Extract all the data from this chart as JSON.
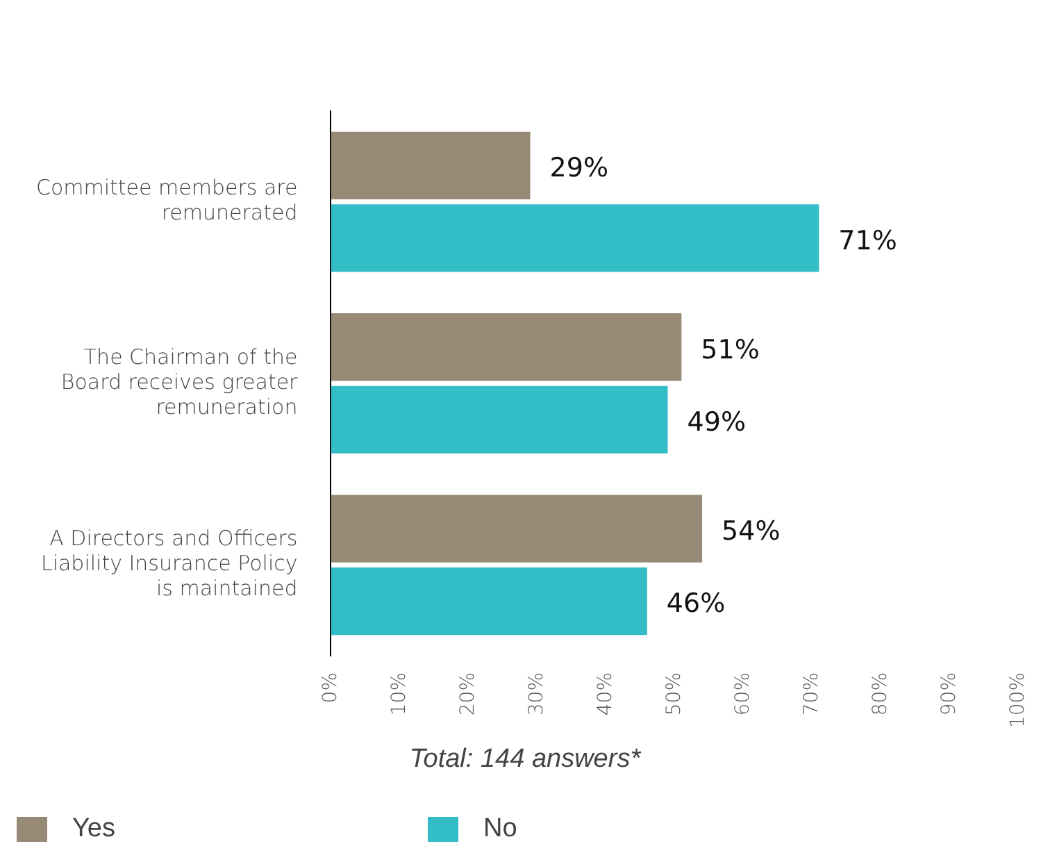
{
  "chart_data": {
    "type": "bar",
    "orientation": "horizontal",
    "categories": [
      "Committee members are remunerated",
      "The Chairman of the Board receives greater remuneration",
      "A Directors and Officers Liability Insurance Policy is maintained"
    ],
    "series": [
      {
        "name": "Yes",
        "color": "#968a76",
        "values": [
          29,
          51,
          54
        ],
        "value_labels": [
          "29%",
          "51%",
          "54%"
        ]
      },
      {
        "name": "No",
        "color": "#33bdc6",
        "values": [
          71,
          49,
          46
        ],
        "value_labels": [
          "71%",
          "49%",
          "46%"
        ]
      }
    ],
    "xlim": [
      0,
      100
    ],
    "xticks": [
      {
        "value": 0,
        "label": "0%"
      },
      {
        "value": 10,
        "label": "10%"
      },
      {
        "value": 20,
        "label": "20%"
      },
      {
        "value": 30,
        "label": "30%"
      },
      {
        "value": 40,
        "label": "40%"
      },
      {
        "value": 50,
        "label": "50%"
      },
      {
        "value": 60,
        "label": "60%"
      },
      {
        "value": 70,
        "label": "70%"
      },
      {
        "value": 80,
        "label": "80%"
      },
      {
        "value": 90,
        "label": "90%"
      },
      {
        "value": 100,
        "label": "100%"
      }
    ],
    "grid": false,
    "legend": "bottom left",
    "annotations": [
      "Total: 144 answers*"
    ]
  }
}
